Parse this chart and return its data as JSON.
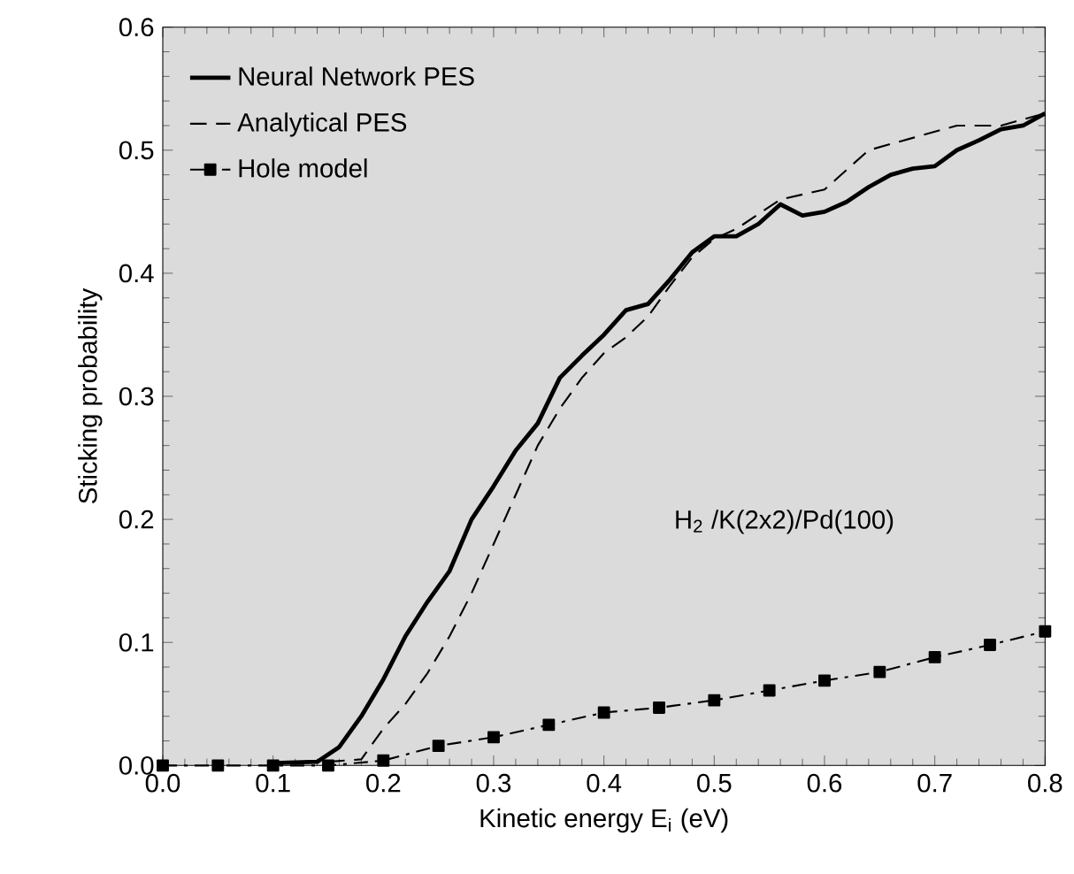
{
  "chart_data": {
    "type": "line",
    "xlabel": "Kinetic energy E$_{i}$ (eV)",
    "ylabel": "Sticking probability",
    "annotations": [
      "H$_{2}$ /K(2x2)/Pd(100)"
    ],
    "xlim": [
      0,
      0.8
    ],
    "ylim": [
      0,
      0.6
    ],
    "xticks": [
      {
        "value": 0,
        "label": "0.0"
      },
      0.1,
      0.2,
      0.3,
      0.4,
      0.5,
      0.6,
      0.7,
      0.8
    ],
    "yticks": [
      {
        "value": 0,
        "label": "0.0"
      },
      0.1,
      0.2,
      0.3,
      0.4,
      0.5,
      0.6
    ],
    "legend": "top left",
    "grid": false,
    "series": [
      {
        "name": "Neural Network PES",
        "color": "#000000",
        "line_style": "solid",
        "marker": "none",
        "x": [
          0.1,
          0.14,
          0.16,
          0.18,
          0.2,
          0.22,
          0.24,
          0.26,
          0.28,
          0.3,
          0.32,
          0.34,
          0.36,
          0.38,
          0.4,
          0.42,
          0.44,
          0.46,
          0.48,
          0.5,
          0.52,
          0.54,
          0.56,
          0.58,
          0.6,
          0.62,
          0.64,
          0.66,
          0.68,
          0.7,
          0.72,
          0.74,
          0.76,
          0.78,
          0.8
        ],
        "values": [
          0.002,
          0.003,
          0.015,
          0.04,
          0.07,
          0.105,
          0.133,
          0.158,
          0.2,
          0.227,
          0.256,
          0.278,
          0.315,
          0.333,
          0.35,
          0.37,
          0.375,
          0.395,
          0.417,
          0.43,
          0.43,
          0.44,
          0.456,
          0.447,
          0.45,
          0.458,
          0.47,
          0.48,
          0.485,
          0.487,
          0.5,
          0.508,
          0.517,
          0.52,
          0.53
        ]
      },
      {
        "name": "Analytical PES",
        "color": "#000000",
        "line_style": "dashed",
        "marker": "none",
        "x": [
          0.15,
          0.18,
          0.2,
          0.22,
          0.24,
          0.26,
          0.28,
          0.3,
          0.32,
          0.34,
          0.36,
          0.38,
          0.4,
          0.42,
          0.44,
          0.46,
          0.48,
          0.5,
          0.52,
          0.56,
          0.6,
          0.64,
          0.68,
          0.72,
          0.76,
          0.8
        ],
        "values": [
          0.003,
          0.005,
          0.03,
          0.05,
          0.075,
          0.105,
          0.14,
          0.18,
          0.22,
          0.26,
          0.29,
          0.315,
          0.335,
          0.348,
          0.365,
          0.39,
          0.413,
          0.428,
          0.436,
          0.46,
          0.468,
          0.5,
          0.51,
          0.52,
          0.52,
          0.53
        ]
      },
      {
        "name": "Hole model",
        "color": "#000000",
        "line_style": "dashdot",
        "marker": "square",
        "x": [
          0,
          0.05,
          0.1,
          0.15,
          0.2,
          0.25,
          0.3,
          0.35,
          0.4,
          0.45,
          0.5,
          0.55,
          0.6,
          0.65,
          0.7,
          0.75,
          0.8
        ],
        "values": [
          0,
          0,
          0,
          0,
          0.004,
          0.016,
          0.023,
          0.033,
          0.043,
          0.047,
          0.053,
          0.061,
          0.069,
          0.076,
          0.088,
          0.098,
          0.109
        ]
      }
    ]
  }
}
